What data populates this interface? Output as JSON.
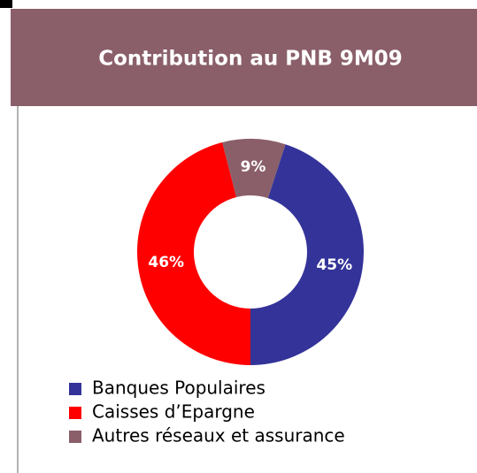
{
  "chart_data": {
    "type": "pie",
    "title": "Contribution au PNB 9M09",
    "categories": [
      "Banques Populaires",
      "Caisses d’Epargne",
      "Autres réseaux et assurance"
    ],
    "values": [
      45,
      46,
      9
    ],
    "value_labels": [
      "45%",
      "46%",
      "9%"
    ],
    "colors": [
      "#333399",
      "#ff0000",
      "#8a5f6a"
    ]
  }
}
